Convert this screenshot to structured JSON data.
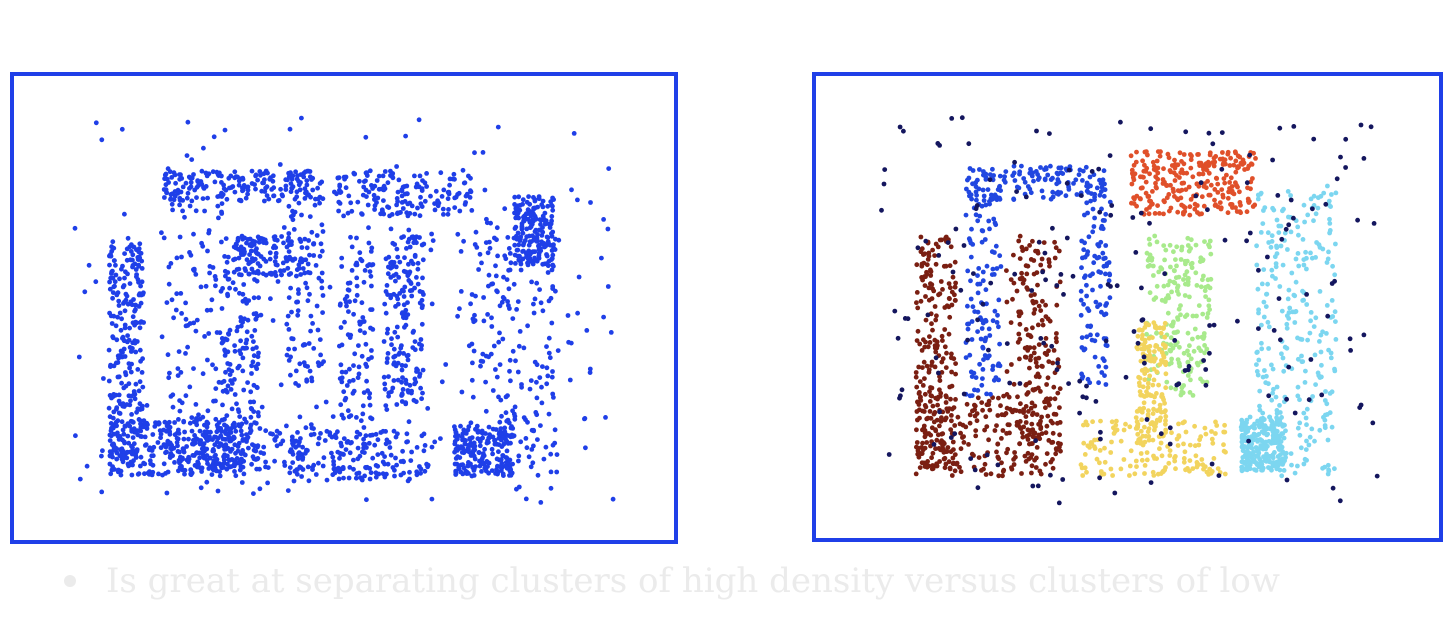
{
  "bullet": {
    "text": "Is great at separating clusters of high density versus clusters of low"
  },
  "colors": {
    "frame": "#1f3fe8",
    "raw_points": "#1f3fe8",
    "bullet_text": "#ebebeb"
  },
  "chart_data": [
    {
      "type": "scatter",
      "title": "",
      "xlabel": "",
      "ylabel": "",
      "grid": false,
      "legend": "none",
      "description_of_points": "Unlabeled raw data: dense point clouds shaped like letters plus sparse uniform noise, all one color",
      "series": [
        {
          "name": "",
          "color": "#1f3fe8",
          "shape": "all points"
        }
      ]
    },
    {
      "type": "scatter",
      "title": "",
      "xlabel": "",
      "ylabel": "",
      "grid": false,
      "legend": "none",
      "series": [
        {
          "name": "",
          "color": "#2147e0"
        },
        {
          "name": "",
          "color": "#7a1f12"
        },
        {
          "name": "",
          "color": "#e0502a"
        },
        {
          "name": "",
          "color": "#a8ea8c"
        },
        {
          "name": "",
          "color": "#f2d45e"
        },
        {
          "name": "",
          "color": "#7cd6f0"
        },
        {
          "name": "",
          "color": "#14165e"
        }
      ]
    }
  ]
}
